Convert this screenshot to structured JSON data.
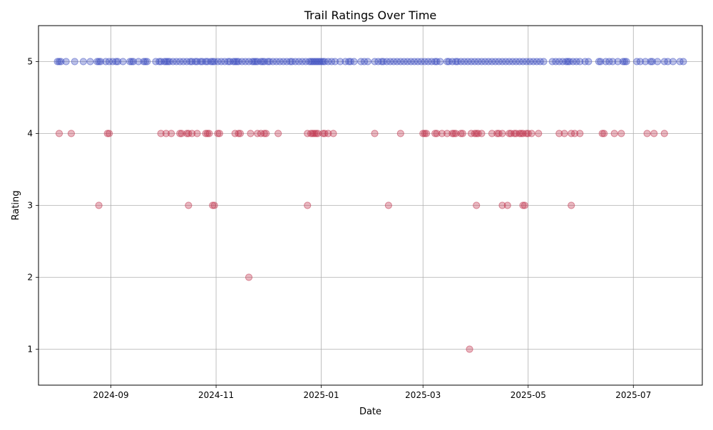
{
  "chart_data": {
    "type": "scatter",
    "title": "Trail Ratings Over Time",
    "xlabel": "Date",
    "ylabel": "Rating",
    "xlim": [
      "2024-07-21",
      "2025-08-10"
    ],
    "ylim": [
      0.5,
      5.5
    ],
    "x_ticks": [
      "2024-09",
      "2024-11",
      "2025-01",
      "2025-03",
      "2025-05",
      "2025-07"
    ],
    "y_ticks": [
      1,
      2,
      3,
      4,
      5
    ],
    "grid": true,
    "colors": {
      "rating_5": "#3b4cc0",
      "rating_low": "#c0304a",
      "grid": "#b0b0b0",
      "spine": "#000000"
    },
    "series": [
      {
        "rating": 5,
        "dates": [
          "2024-08-01",
          "2024-08-02",
          "2024-08-03",
          "2024-08-06",
          "2024-08-11",
          "2024-08-16",
          "2024-08-20",
          "2024-08-24",
          "2024-08-25",
          "2024-08-26",
          "2024-08-29",
          "2024-08-31",
          "2024-09-02",
          "2024-09-04",
          "2024-09-05",
          "2024-09-08",
          "2024-09-12",
          "2024-09-13",
          "2024-09-14",
          "2024-09-17",
          "2024-09-20",
          "2024-09-21",
          "2024-09-22",
          "2024-09-27",
          "2024-09-29",
          "2024-09-30",
          "2024-10-02",
          "2024-10-03",
          "2024-10-04",
          "2024-10-05",
          "2024-10-07",
          "2024-10-09",
          "2024-10-11",
          "2024-10-13",
          "2024-10-15",
          "2024-10-17",
          "2024-10-18",
          "2024-10-20",
          "2024-10-21",
          "2024-10-23",
          "2024-10-24",
          "2024-10-26",
          "2024-10-27",
          "2024-10-29",
          "2024-10-30",
          "2024-10-31",
          "2024-11-02",
          "2024-11-04",
          "2024-11-06",
          "2024-11-08",
          "2024-11-09",
          "2024-11-11",
          "2024-11-12",
          "2024-11-13",
          "2024-11-14",
          "2024-11-16",
          "2024-11-18",
          "2024-11-20",
          "2024-11-22",
          "2024-11-23",
          "2024-11-24",
          "2024-11-25",
          "2024-11-27",
          "2024-11-28",
          "2024-11-29",
          "2024-12-01",
          "2024-12-02",
          "2024-12-04",
          "2024-12-06",
          "2024-12-08",
          "2024-12-10",
          "2024-12-12",
          "2024-12-14",
          "2024-12-15",
          "2024-12-17",
          "2024-12-19",
          "2024-12-21",
          "2024-12-23",
          "2024-12-25",
          "2024-12-26",
          "2024-12-27",
          "2024-12-28",
          "2024-12-29",
          "2024-12-30",
          "2024-12-31",
          "2025-01-01",
          "2025-01-02",
          "2025-01-03",
          "2025-01-05",
          "2025-01-07",
          "2025-01-09",
          "2025-01-12",
          "2025-01-15",
          "2025-01-17",
          "2025-01-18",
          "2025-01-20",
          "2025-01-24",
          "2025-01-26",
          "2025-01-28",
          "2025-02-01",
          "2025-02-03",
          "2025-02-05",
          "2025-02-06",
          "2025-02-08",
          "2025-02-10",
          "2025-02-12",
          "2025-02-14",
          "2025-02-16",
          "2025-02-18",
          "2025-02-20",
          "2025-02-22",
          "2025-02-24",
          "2025-02-26",
          "2025-02-28",
          "2025-03-02",
          "2025-03-04",
          "2025-03-06",
          "2025-03-08",
          "2025-03-09",
          "2025-03-11",
          "2025-03-15",
          "2025-03-16",
          "2025-03-18",
          "2025-03-20",
          "2025-03-21",
          "2025-03-23",
          "2025-03-25",
          "2025-03-27",
          "2025-03-29",
          "2025-03-31",
          "2025-04-02",
          "2025-04-04",
          "2025-04-06",
          "2025-04-08",
          "2025-04-10",
          "2025-04-12",
          "2025-04-14",
          "2025-04-16",
          "2025-04-18",
          "2025-04-20",
          "2025-04-22",
          "2025-04-24",
          "2025-04-26",
          "2025-04-28",
          "2025-04-30",
          "2025-05-02",
          "2025-05-04",
          "2025-05-06",
          "2025-05-08",
          "2025-05-10",
          "2025-05-15",
          "2025-05-17",
          "2025-05-19",
          "2025-05-21",
          "2025-05-23",
          "2025-05-24",
          "2025-05-25",
          "2025-05-27",
          "2025-05-29",
          "2025-05-31",
          "2025-06-03",
          "2025-06-05",
          "2025-06-11",
          "2025-06-12",
          "2025-06-15",
          "2025-06-17",
          "2025-06-19",
          "2025-06-22",
          "2025-06-25",
          "2025-06-26",
          "2025-06-27",
          "2025-07-03",
          "2025-07-05",
          "2025-07-08",
          "2025-07-11",
          "2025-07-12",
          "2025-07-15",
          "2025-07-19",
          "2025-07-21",
          "2025-07-24",
          "2025-07-28",
          "2025-07-30"
        ]
      },
      {
        "rating": 4,
        "dates": [
          "2024-08-02",
          "2024-08-09",
          "2024-08-30",
          "2024-08-31",
          "2024-09-30",
          "2024-10-03",
          "2024-10-06",
          "2024-10-11",
          "2024-10-12",
          "2024-10-15",
          "2024-10-16",
          "2024-10-18",
          "2024-10-21",
          "2024-10-26",
          "2024-10-27",
          "2024-10-28",
          "2024-11-02",
          "2024-11-03",
          "2024-11-12",
          "2024-11-14",
          "2024-11-15",
          "2024-11-21",
          "2024-11-25",
          "2024-11-27",
          "2024-11-29",
          "2024-11-30",
          "2024-12-07",
          "2024-12-24",
          "2024-12-26",
          "2024-12-27",
          "2024-12-28",
          "2024-12-29",
          "2024-12-30",
          "2025-01-02",
          "2025-01-03",
          "2025-01-05",
          "2025-01-08",
          "2025-02-01",
          "2025-02-16",
          "2025-03-01",
          "2025-03-02",
          "2025-03-03",
          "2025-03-08",
          "2025-03-09",
          "2025-03-12",
          "2025-03-15",
          "2025-03-18",
          "2025-03-19",
          "2025-03-20",
          "2025-03-23",
          "2025-03-24",
          "2025-03-29",
          "2025-03-31",
          "2025-04-01",
          "2025-04-02",
          "2025-04-04",
          "2025-04-10",
          "2025-04-13",
          "2025-04-14",
          "2025-04-16",
          "2025-04-20",
          "2025-04-21",
          "2025-04-23",
          "2025-04-24",
          "2025-04-26",
          "2025-04-27",
          "2025-04-28",
          "2025-04-30",
          "2025-05-01",
          "2025-05-03",
          "2025-05-07",
          "2025-05-19",
          "2025-05-22",
          "2025-05-26",
          "2025-05-28",
          "2025-05-31",
          "2025-06-13",
          "2025-06-14",
          "2025-06-20",
          "2025-06-24",
          "2025-07-09",
          "2025-07-13",
          "2025-07-19"
        ]
      },
      {
        "rating": 3,
        "dates": [
          "2024-08-25",
          "2024-10-16",
          "2024-10-30",
          "2024-10-31",
          "2024-12-24",
          "2025-02-09",
          "2025-04-01",
          "2025-04-16",
          "2025-04-19",
          "2025-04-28",
          "2025-04-29",
          "2025-05-26"
        ]
      },
      {
        "rating": 2,
        "dates": [
          "2024-11-20"
        ]
      },
      {
        "rating": 1,
        "dates": [
          "2025-03-28"
        ]
      }
    ]
  }
}
